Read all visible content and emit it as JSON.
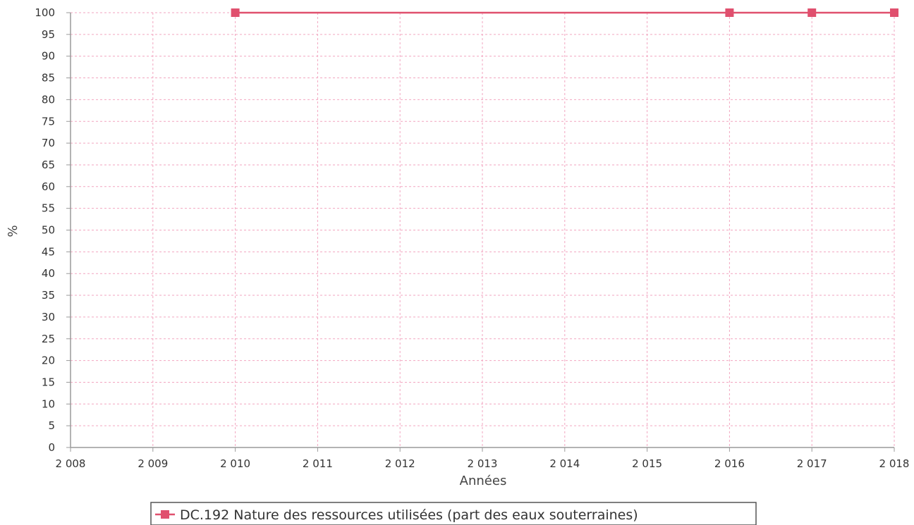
{
  "chart_data": {
    "type": "line",
    "title": "",
    "xlabel": "Années",
    "ylabel": "%",
    "x_ticks": [
      "2 008",
      "2 009",
      "2 010",
      "2 011",
      "2 012",
      "2 013",
      "2 014",
      "2 015",
      "2 016",
      "2 017",
      "2 018"
    ],
    "y_ticks": [
      "0",
      "5",
      "10",
      "15",
      "20",
      "25",
      "30",
      "35",
      "40",
      "45",
      "50",
      "55",
      "60",
      "65",
      "70",
      "75",
      "80",
      "85",
      "90",
      "95",
      "100"
    ],
    "xlim": [
      2008,
      2018
    ],
    "ylim": [
      0,
      100
    ],
    "grid": true,
    "legend_position": "bottom",
    "series": [
      {
        "name": "DC.192 Nature des ressources utilisées (part des eaux souterraines)",
        "color": "#e0506e",
        "marker": "square",
        "x": [
          2010,
          2016,
          2017,
          2018
        ],
        "y": [
          100,
          100,
          100,
          100
        ]
      }
    ]
  },
  "colors": {
    "grid": "#f2a6c0",
    "axis": "#9a9a9a",
    "series": "#e0506e"
  }
}
